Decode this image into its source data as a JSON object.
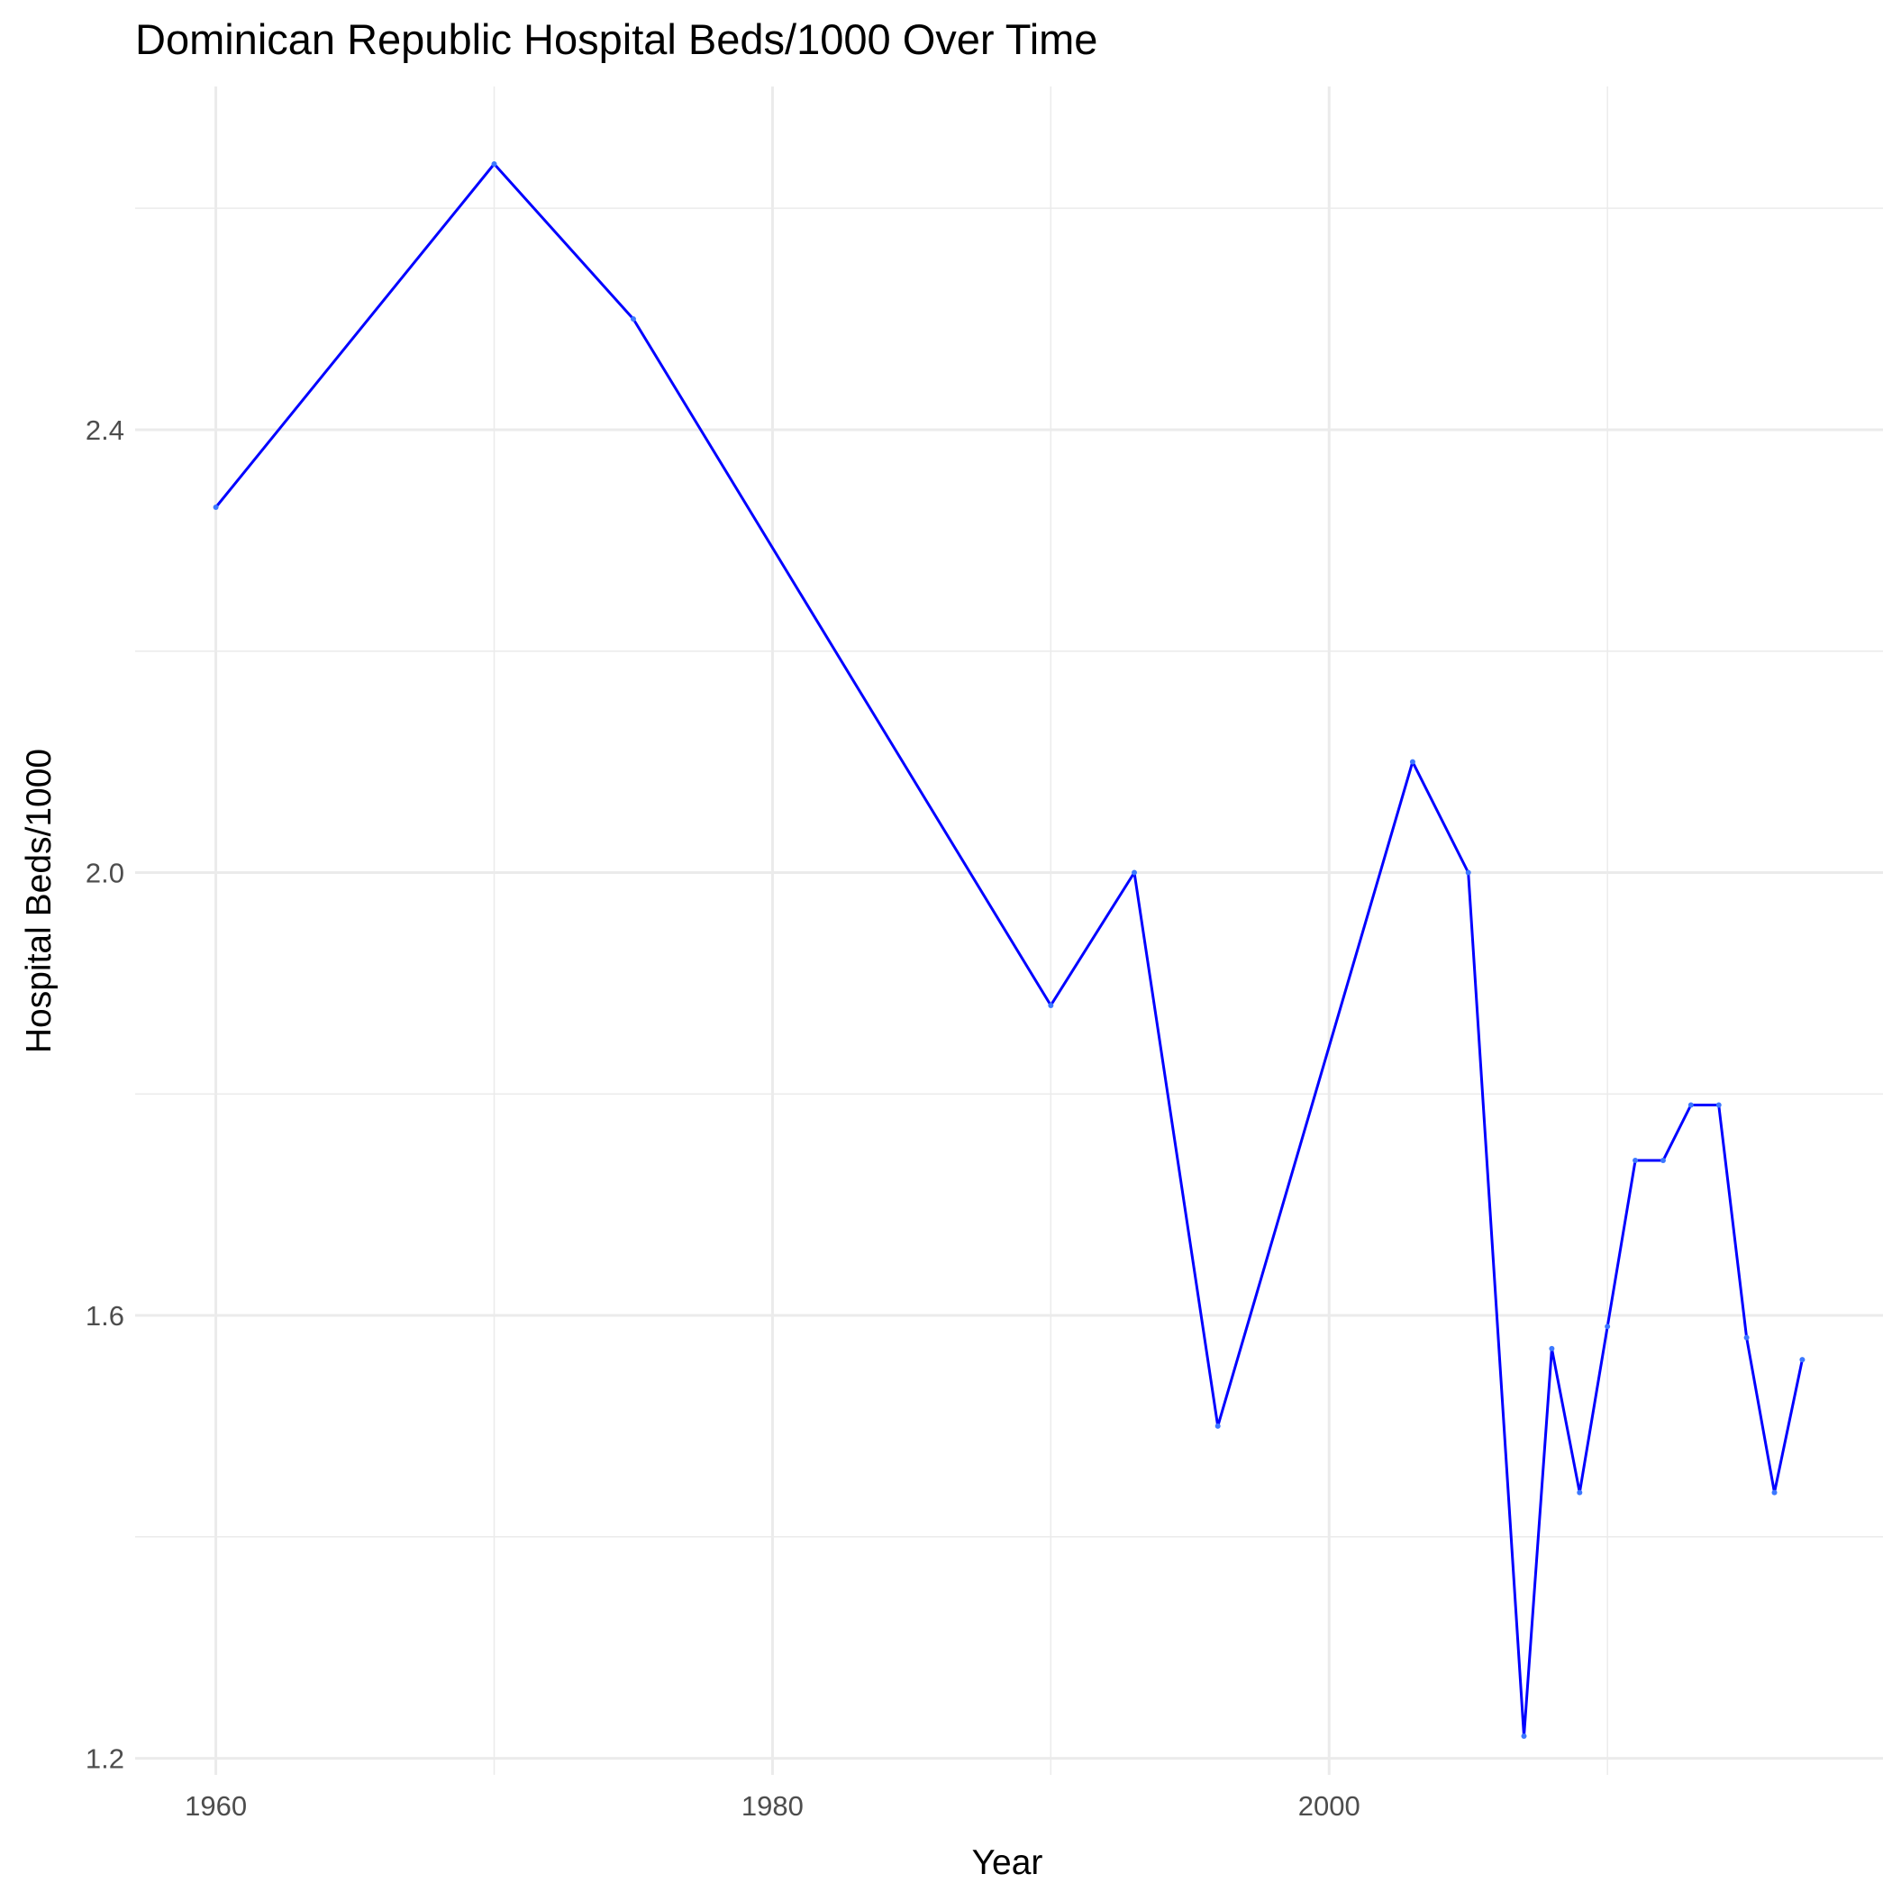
{
  "chart_data": {
    "type": "line",
    "title": "Dominican Republic Hospital Beds/1000 Over Time",
    "xlabel": "Year",
    "ylabel": "Hospital Beds/1000",
    "xlim": [
      1957.1,
      2019.9
    ],
    "ylim": [
      1.185,
      2.71
    ],
    "x_ticks": [
      1960,
      1980,
      2000
    ],
    "x_tick_labels": [
      "1960",
      "1980",
      "2000"
    ],
    "y_ticks": [
      1.2,
      1.6,
      2.0,
      2.4
    ],
    "y_tick_labels": [
      "1.2",
      "1.6",
      "2.0",
      "2.4"
    ],
    "x_minor_ticks": [
      1970,
      1990,
      2010
    ],
    "y_minor_ticks": [
      1.4,
      1.8,
      2.2,
      2.6
    ],
    "grid": true,
    "series": [
      {
        "color": "#0000ff",
        "x": [
          1960,
          1970,
          1975,
          1990,
          1993,
          1996,
          2003,
          2005,
          2007,
          2008,
          2009,
          2010,
          2011,
          2012,
          2013,
          2014,
          2015,
          2016,
          2017
        ],
        "y": [
          2.33,
          2.64,
          2.5,
          1.88,
          2.0,
          1.5,
          2.1,
          2.0,
          1.22,
          1.57,
          1.44,
          1.59,
          1.74,
          1.74,
          1.79,
          1.79,
          1.58,
          1.44,
          1.56
        ]
      }
    ]
  }
}
